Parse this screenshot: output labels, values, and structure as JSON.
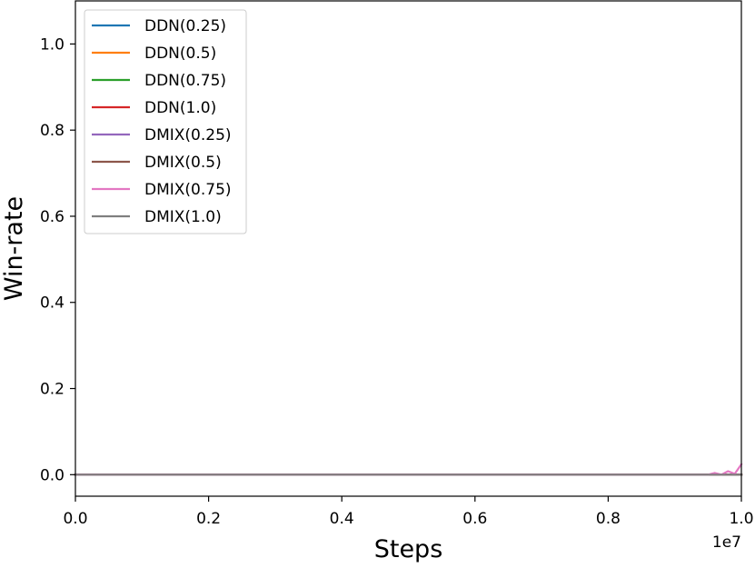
{
  "chart_data": {
    "type": "line",
    "title": "",
    "xlabel": "Steps",
    "ylabel": "Win-rate",
    "x_offset_label": "1e7",
    "xlim": [
      0.0,
      1.0
    ],
    "ylim": [
      -0.05,
      1.1
    ],
    "x_scale": 10000000,
    "x_ticks": [
      0.0,
      0.2,
      0.4,
      0.6,
      0.8,
      1.0
    ],
    "x_tick_labels": [
      "0.0",
      "0.2",
      "0.4",
      "0.6",
      "0.8",
      "1.0"
    ],
    "y_ticks": [
      0.0,
      0.2,
      0.4,
      0.6,
      0.8,
      1.0
    ],
    "y_tick_labels": [
      "0.0",
      "0.2",
      "0.4",
      "0.6",
      "0.8",
      "1.0"
    ],
    "grid": false,
    "legend_position": "top-left",
    "series": [
      {
        "name": "DDN(0.25)",
        "color": "#1f77b4",
        "x": [
          0.0,
          1.0
        ],
        "y": [
          0.0,
          0.0
        ]
      },
      {
        "name": "DDN(0.5)",
        "color": "#ff7f0e",
        "x": [
          0.0,
          1.0
        ],
        "y": [
          0.0,
          0.0
        ]
      },
      {
        "name": "DDN(0.75)",
        "color": "#2ca02c",
        "x": [
          0.0,
          1.0
        ],
        "y": [
          0.0,
          0.0
        ]
      },
      {
        "name": "DDN(1.0)",
        "color": "#d62728",
        "x": [
          0.0,
          1.0
        ],
        "y": [
          0.0,
          0.0
        ]
      },
      {
        "name": "DMIX(0.25)",
        "color": "#9467bd",
        "x": [
          0.0,
          1.0
        ],
        "y": [
          0.0,
          0.0
        ]
      },
      {
        "name": "DMIX(0.5)",
        "color": "#8c564b",
        "x": [
          0.0,
          1.0
        ],
        "y": [
          0.0,
          0.0
        ]
      },
      {
        "name": "DMIX(0.75)",
        "color": "#e377c2",
        "x": [
          0.0,
          0.95,
          0.96,
          0.97,
          0.98,
          0.99,
          1.0
        ],
        "y": [
          0.0,
          0.0,
          0.004,
          0.0,
          0.008,
          0.002,
          0.024
        ]
      },
      {
        "name": "DMIX(1.0)",
        "color": "#7f7f7f",
        "x": [
          0.0,
          1.0
        ],
        "y": [
          0.0,
          0.0
        ]
      }
    ]
  }
}
